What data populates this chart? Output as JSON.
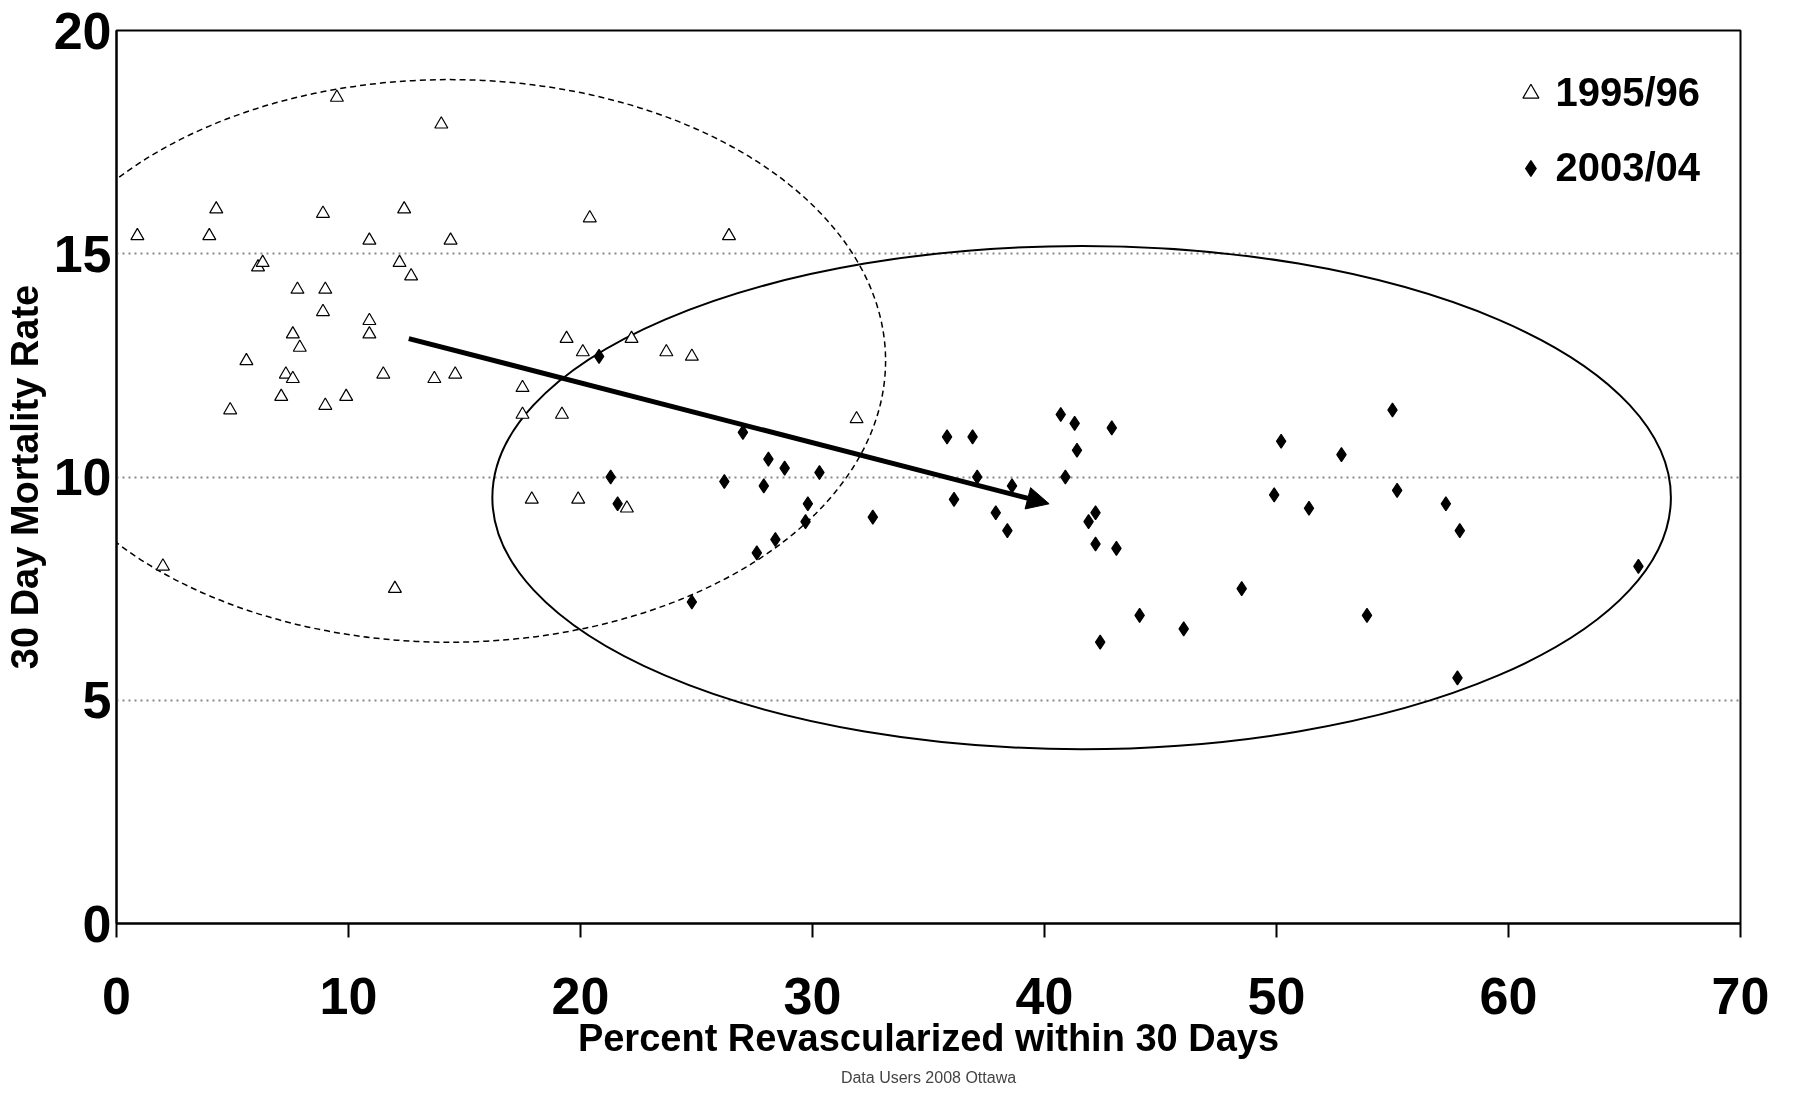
{
  "chart_data": {
    "type": "scatter",
    "xlabel": "Percent Revascularized within 30 Days",
    "ylabel": "30 Day Mortality Rate",
    "xlim": [
      0,
      70
    ],
    "ylim": [
      0,
      20
    ],
    "xticks": [
      0,
      10,
      20,
      30,
      40,
      50,
      60,
      70
    ],
    "yticks": [
      0,
      5,
      10,
      15,
      20
    ],
    "grid": "y",
    "legend": "top right",
    "annotations": [
      "Data Users 2008 Ottawa"
    ],
    "series": [
      {
        "name": "1995/96",
        "color": "#000000",
        "marker": "triangle",
        "x": [
          0.9,
          2.0,
          4.0,
          4.3,
          4.9,
          5.6,
          6.1,
          6.3,
          7.1,
          7.3,
          7.6,
          7.6,
          7.8,
          7.9,
          8.9,
          9.0,
          8.9,
          9.0,
          9.5,
          9.9,
          10.9,
          10.9,
          10.9,
          11.5,
          12.0,
          12.2,
          12.4,
          12.7,
          13.7,
          14.0,
          14.4,
          14.6,
          17.5,
          17.5,
          17.9,
          19.2,
          19.4,
          19.9,
          20.1,
          20.4,
          22.0,
          22.2,
          23.7,
          24.8,
          26.4,
          31.9
        ],
        "values": [
          15.4,
          8.0,
          15.4,
          16.0,
          11.5,
          12.6,
          14.7,
          14.8,
          11.8,
          12.3,
          13.2,
          12.2,
          14.2,
          12.9,
          15.9,
          14.2,
          13.7,
          11.6,
          18.5,
          11.8,
          15.3,
          13.5,
          13.2,
          12.3,
          7.5,
          14.8,
          16.0,
          14.5,
          12.2,
          17.9,
          15.3,
          12.3,
          12.0,
          11.4,
          9.5,
          11.4,
          13.1,
          9.5,
          12.8,
          15.8,
          9.3,
          13.1,
          12.8,
          12.7,
          15.4,
          11.3
        ]
      },
      {
        "name": "2003/04",
        "color": "#000000",
        "marker": "diamond",
        "x": [
          20.8,
          21.3,
          21.6,
          24.8,
          26.2,
          27.0,
          27.6,
          27.9,
          28.1,
          28.4,
          28.8,
          29.7,
          29.8,
          30.3,
          32.6,
          35.8,
          36.1,
          36.9,
          37.1,
          37.9,
          38.4,
          38.6,
          40.7,
          40.9,
          41.3,
          41.4,
          41.9,
          42.2,
          42.2,
          42.4,
          42.9,
          43.1,
          44.1,
          46.0,
          48.5,
          49.9,
          50.2,
          51.4,
          52.8,
          53.9,
          55.0,
          55.2,
          57.3,
          57.9,
          57.8,
          65.6
        ],
        "values": [
          12.7,
          10.0,
          9.4,
          7.2,
          9.9,
          11.0,
          8.3,
          9.8,
          10.4,
          8.6,
          10.2,
          9.0,
          9.4,
          10.1,
          9.1,
          10.9,
          9.5,
          10.9,
          10.0,
          9.2,
          8.8,
          9.8,
          11.4,
          10.0,
          11.2,
          10.6,
          9.0,
          9.2,
          8.5,
          6.3,
          11.1,
          8.4,
          6.9,
          6.6,
          7.5,
          9.6,
          10.8,
          9.3,
          10.5,
          6.9,
          11.5,
          9.7,
          9.4,
          8.8,
          5.5,
          8.0
        ]
      }
    ]
  }
}
